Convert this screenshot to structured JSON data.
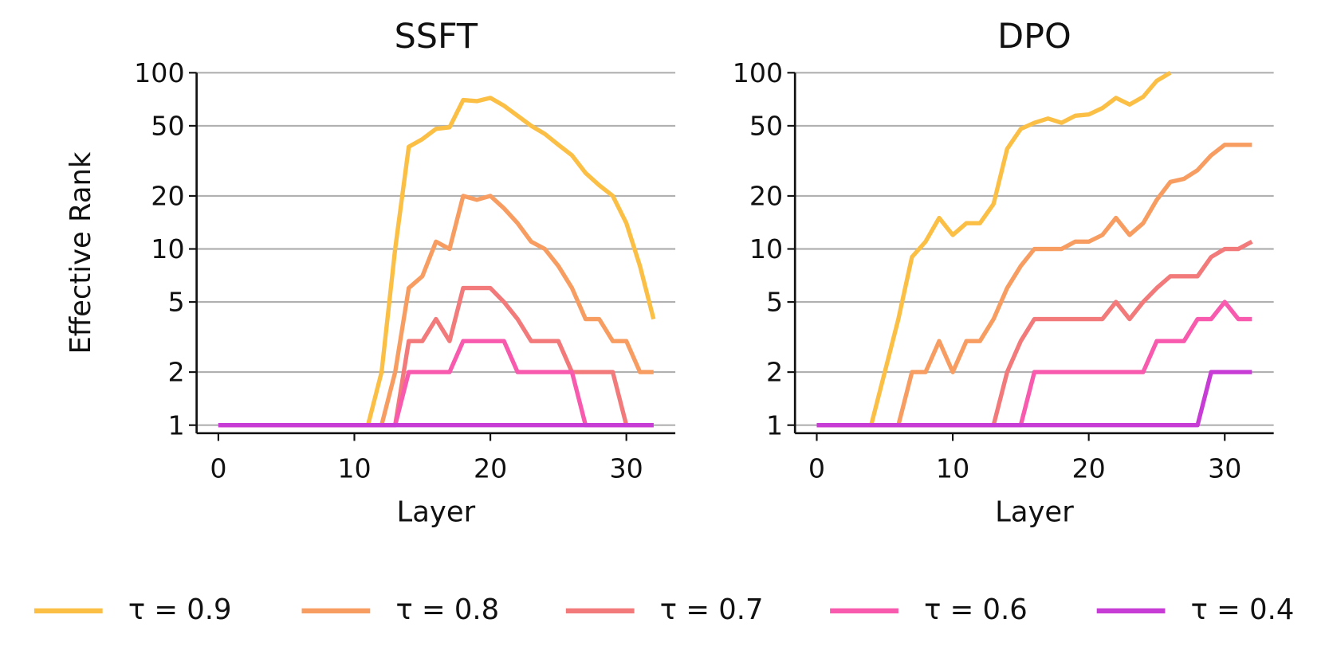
{
  "chart_data": [
    {
      "type": "line",
      "title": "SSFT",
      "xlabel": "Layer",
      "ylabel": "Effective Rank",
      "log_y": true,
      "grid": true,
      "x": [
        0,
        1,
        2,
        3,
        4,
        5,
        6,
        7,
        8,
        9,
        10,
        11,
        12,
        13,
        14,
        15,
        16,
        17,
        18,
        19,
        20,
        21,
        22,
        23,
        24,
        25,
        26,
        27,
        28,
        29,
        30,
        31,
        32
      ],
      "xlim": [
        -1.6,
        33.6
      ],
      "xticks": [
        0,
        10,
        20,
        30
      ],
      "ylim": [
        0.9,
        100
      ],
      "yticks": [
        1,
        2,
        5,
        10,
        20,
        50,
        100
      ],
      "series": [
        {
          "name": "τ = 0.9",
          "color": "#fbbf45",
          "values": [
            1,
            1,
            1,
            1,
            1,
            1,
            1,
            1,
            1,
            1,
            1,
            1,
            2,
            10,
            38,
            42,
            48,
            49,
            70,
            69,
            72,
            65,
            57,
            50,
            45,
            39,
            34,
            27,
            23,
            20,
            14,
            8,
            4
          ]
        },
        {
          "name": "τ = 0.8",
          "color": "#f89d62",
          "values": [
            1,
            1,
            1,
            1,
            1,
            1,
            1,
            1,
            1,
            1,
            1,
            1,
            1,
            2,
            6,
            7,
            11,
            10,
            20,
            19,
            20,
            17,
            14,
            11,
            10,
            8,
            6,
            4,
            4,
            3,
            3,
            2,
            2
          ]
        },
        {
          "name": "τ = 0.7",
          "color": "#f27a7a",
          "values": [
            1,
            1,
            1,
            1,
            1,
            1,
            1,
            1,
            1,
            1,
            1,
            1,
            1,
            1,
            3,
            3,
            4,
            3,
            6,
            6,
            6,
            5,
            4,
            3,
            3,
            3,
            2,
            2,
            2,
            2,
            1,
            1,
            1
          ]
        },
        {
          "name": "τ = 0.6",
          "color": "#f85aae",
          "values": [
            1,
            1,
            1,
            1,
            1,
            1,
            1,
            1,
            1,
            1,
            1,
            1,
            1,
            1,
            2,
            2,
            2,
            2,
            3,
            3,
            3,
            3,
            2,
            2,
            2,
            2,
            2,
            1,
            1,
            1,
            1,
            1,
            1
          ]
        },
        {
          "name": "τ = 0.4",
          "color": "#c83cd6",
          "values": [
            1,
            1,
            1,
            1,
            1,
            1,
            1,
            1,
            1,
            1,
            1,
            1,
            1,
            1,
            1,
            1,
            1,
            1,
            1,
            1,
            1,
            1,
            1,
            1,
            1,
            1,
            1,
            1,
            1,
            1,
            1,
            1,
            1
          ]
        }
      ]
    },
    {
      "type": "line",
      "title": "DPO",
      "xlabel": "Layer",
      "log_y": true,
      "grid": true,
      "x": [
        0,
        1,
        2,
        3,
        4,
        5,
        6,
        7,
        8,
        9,
        10,
        11,
        12,
        13,
        14,
        15,
        16,
        17,
        18,
        19,
        20,
        21,
        22,
        23,
        24,
        25,
        26,
        27,
        28,
        29,
        30,
        31,
        32
      ],
      "xlim": [
        -1.6,
        33.6
      ],
      "xticks": [
        0,
        10,
        20,
        30
      ],
      "ylim": [
        0.9,
        100
      ],
      "yticks": [
        1,
        2,
        5,
        10,
        20,
        50,
        100
      ],
      "series": [
        {
          "color": "#fbbf45",
          "values": [
            1,
            1,
            1,
            1,
            1,
            2,
            4,
            9,
            11,
            15,
            12,
            14,
            14,
            18,
            37,
            48,
            52,
            55,
            52,
            57,
            58,
            63,
            72,
            66,
            73,
            90,
            100,
            null,
            null,
            null,
            null,
            null,
            null
          ]
        },
        {
          "color": "#f89d62",
          "values": [
            1,
            1,
            1,
            1,
            1,
            1,
            1,
            2,
            2,
            3,
            2,
            3,
            3,
            4,
            6,
            8,
            10,
            10,
            10,
            11,
            11,
            12,
            15,
            12,
            14,
            19,
            24,
            25,
            28,
            34,
            39,
            39,
            39
          ]
        },
        {
          "color": "#f27a7a",
          "values": [
            1,
            1,
            1,
            1,
            1,
            1,
            1,
            1,
            1,
            1,
            1,
            1,
            1,
            1,
            2,
            3,
            4,
            4,
            4,
            4,
            4,
            4,
            5,
            4,
            5,
            6,
            7,
            7,
            7,
            9,
            10,
            10,
            11
          ]
        },
        {
          "color": "#f85aae",
          "values": [
            1,
            1,
            1,
            1,
            1,
            1,
            1,
            1,
            1,
            1,
            1,
            1,
            1,
            1,
            1,
            1,
            2,
            2,
            2,
            2,
            2,
            2,
            2,
            2,
            2,
            3,
            3,
            3,
            4,
            4,
            5,
            4,
            4
          ]
        },
        {
          "color": "#c83cd6",
          "values": [
            1,
            1,
            1,
            1,
            1,
            1,
            1,
            1,
            1,
            1,
            1,
            1,
            1,
            1,
            1,
            1,
            1,
            1,
            1,
            1,
            1,
            1,
            1,
            1,
            1,
            1,
            1,
            1,
            1,
            2,
            2,
            2,
            2
          ]
        }
      ]
    }
  ]
}
